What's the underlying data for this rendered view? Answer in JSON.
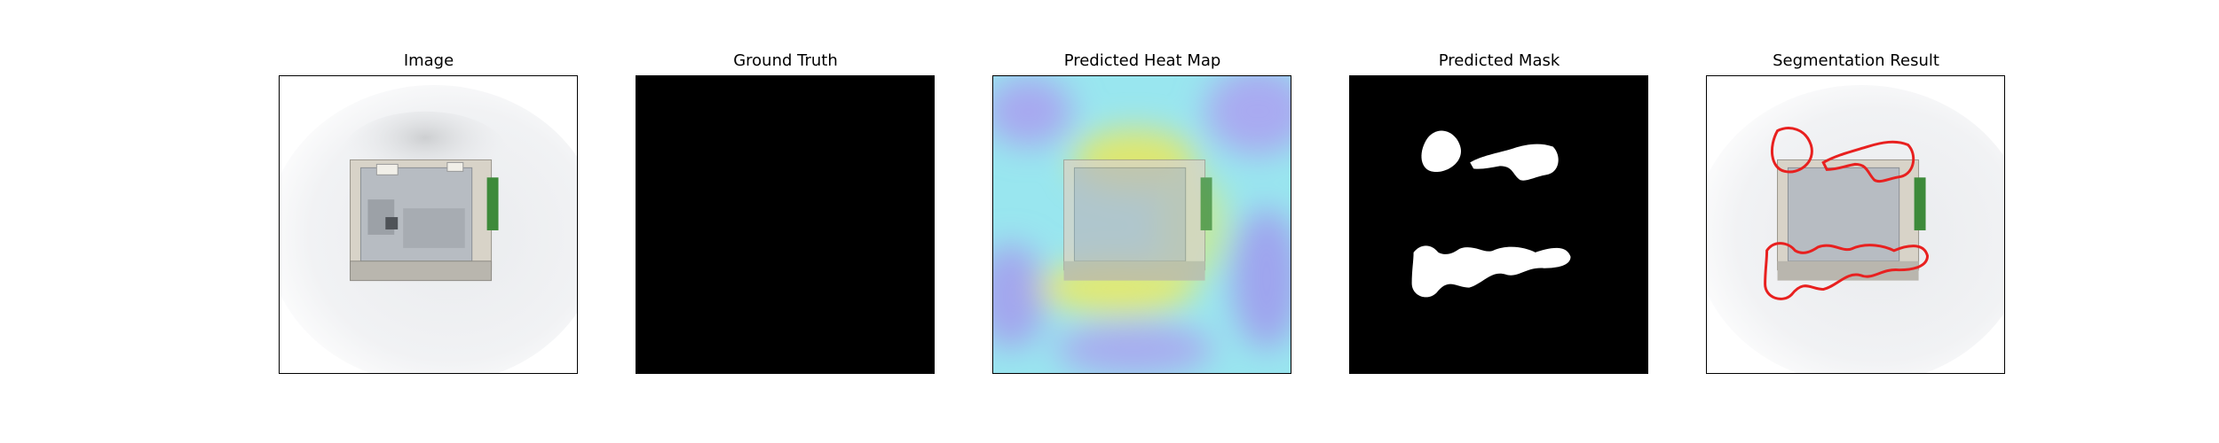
{
  "panels": [
    {
      "id": "image",
      "title": "Image"
    },
    {
      "id": "ground-truth",
      "title": "Ground Truth"
    },
    {
      "id": "heatmap",
      "title": "Predicted Heat Map"
    },
    {
      "id": "mask",
      "title": "Predicted Mask"
    },
    {
      "id": "segmentation",
      "title": "Segmentation Result"
    }
  ],
  "colors": {
    "contour": "#e8201f",
    "mask_fg": "#ffffff",
    "mask_bg": "#000000",
    "heat_low": "#9a9cf0",
    "heat_mid": "#8be4ec",
    "heat_high": "#e4e86a"
  }
}
